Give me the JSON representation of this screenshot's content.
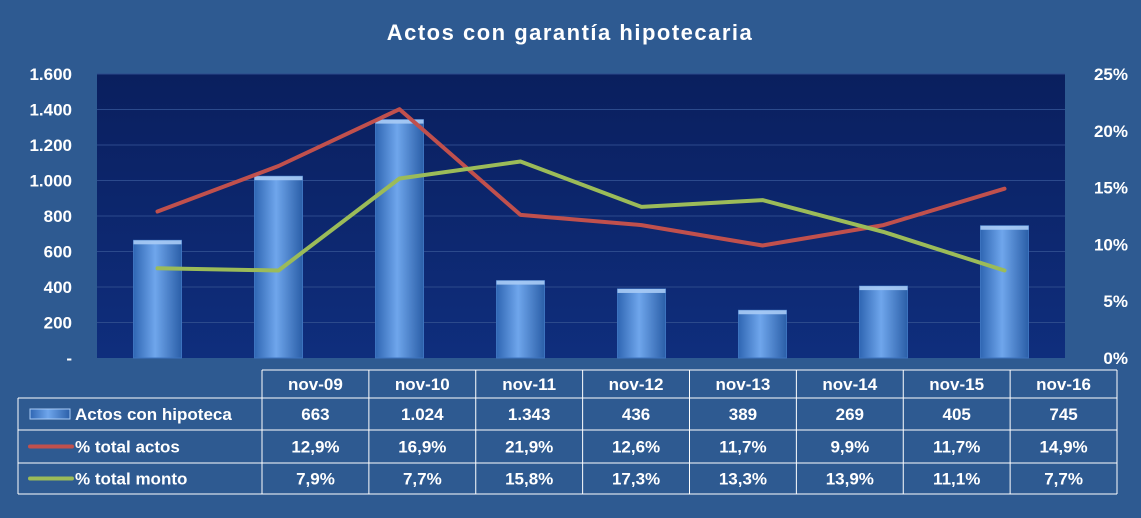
{
  "chart_data": {
    "type": "bar",
    "title": "Actos con garantía hipotecaria",
    "categories": [
      "nov-09",
      "nov-10",
      "nov-11",
      "nov-12",
      "nov-13",
      "nov-14",
      "nov-15",
      "nov-16"
    ],
    "y_axis_left": {
      "ylim": [
        0,
        1600
      ],
      "ticks": [
        0,
        200,
        400,
        600,
        800,
        1000,
        1200,
        1400,
        1600
      ],
      "tick_labels": [
        "-",
        "200",
        "400",
        "600",
        "800",
        "1.000",
        "1.200",
        "1.400",
        "1.600"
      ]
    },
    "y_axis_right": {
      "ylim": [
        0,
        25
      ],
      "ticks": [
        0,
        5,
        10,
        15,
        20,
        25
      ],
      "tick_labels": [
        "0%",
        "5%",
        "10%",
        "15%",
        "20%",
        "25%"
      ]
    },
    "grid": true,
    "legend": "data-table",
    "series": [
      {
        "name": "Actos con hipoteca",
        "type": "bar",
        "axis": "left",
        "color": "#4f8fd9",
        "values": [
          663,
          1024,
          1343,
          436,
          389,
          269,
          405,
          745
        ],
        "labels": [
          "663",
          "1.024",
          "1.343",
          "436",
          "389",
          "269",
          "405",
          "745"
        ]
      },
      {
        "name": "%  total actos",
        "type": "line",
        "axis": "right",
        "color": "#c0504d",
        "values": [
          12.9,
          16.9,
          21.9,
          12.6,
          11.7,
          9.9,
          11.7,
          14.9
        ],
        "labels": [
          "12,9%",
          "16,9%",
          "21,9%",
          "12,6%",
          "11,7%",
          "9,9%",
          "11,7%",
          "14,9%"
        ]
      },
      {
        "name": "% total monto",
        "type": "line",
        "axis": "right",
        "color": "#9bbb59",
        "values": [
          7.9,
          7.7,
          15.8,
          17.3,
          13.3,
          13.9,
          11.1,
          7.7
        ],
        "labels": [
          "7,9%",
          "7,7%",
          "15,8%",
          "17,3%",
          "13,3%",
          "13,9%",
          "11,1%",
          "7,7%"
        ]
      }
    ]
  }
}
